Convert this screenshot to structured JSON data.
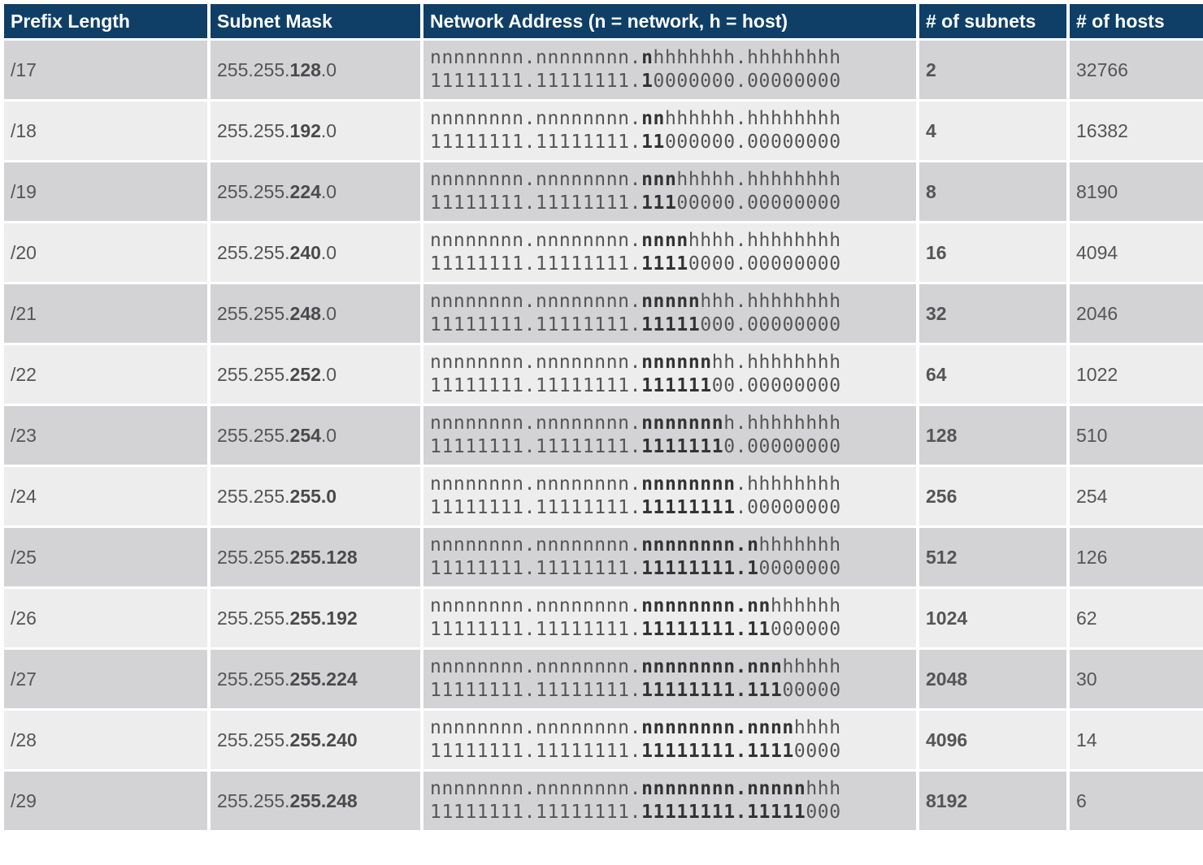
{
  "headers": [
    "Prefix Length",
    "Subnet Mask",
    "Network Address (n = network, h = host)",
    "# of subnets",
    "# of hosts"
  ],
  "rows": [
    {
      "prefix": "/17",
      "mask_plain": "255.255.",
      "mask_bold": "128",
      "mask_tail": ".0",
      "net_plain": "nnnnnnnn.nnnnnnnn.",
      "net_bold": "n",
      "net_tail": "hhhhhhh.hhhhhhhh",
      "bin_plain": "11111111.11111111.",
      "bin_bold": "1",
      "bin_tail": "0000000.00000000",
      "subnets": "2",
      "hosts": "32766"
    },
    {
      "prefix": "/18",
      "mask_plain": "255.255.",
      "mask_bold": "192",
      "mask_tail": ".0",
      "net_plain": "nnnnnnnn.nnnnnnnn.",
      "net_bold": "nn",
      "net_tail": "hhhhhh.hhhhhhhh",
      "bin_plain": "11111111.11111111.",
      "bin_bold": "11",
      "bin_tail": "000000.00000000",
      "subnets": "4",
      "hosts": "16382"
    },
    {
      "prefix": "/19",
      "mask_plain": "255.255.",
      "mask_bold": "224",
      "mask_tail": ".0",
      "net_plain": "nnnnnnnn.nnnnnnnn.",
      "net_bold": "nnn",
      "net_tail": "hhhhh.hhhhhhhh",
      "bin_plain": "11111111.11111111.",
      "bin_bold": "111",
      "bin_tail": "00000.00000000",
      "subnets": "8",
      "hosts": "8190"
    },
    {
      "prefix": "/20",
      "mask_plain": "255.255.",
      "mask_bold": "240",
      "mask_tail": ".0",
      "net_plain": "nnnnnnnn.nnnnnnnn.",
      "net_bold": "nnnn",
      "net_tail": "hhhh.hhhhhhhh",
      "bin_plain": "11111111.11111111.",
      "bin_bold": "1111",
      "bin_tail": "0000.00000000",
      "subnets": "16",
      "hosts": "4094"
    },
    {
      "prefix": "/21",
      "mask_plain": "255.255.",
      "mask_bold": "248",
      "mask_tail": ".0",
      "net_plain": "nnnnnnnn.nnnnnnnn.",
      "net_bold": "nnnnn",
      "net_tail": "hhh.hhhhhhhh",
      "bin_plain": "11111111.11111111.",
      "bin_bold": "11111",
      "bin_tail": "000.00000000",
      "subnets": "32",
      "hosts": "2046"
    },
    {
      "prefix": "/22",
      "mask_plain": "255.255.",
      "mask_bold": "252",
      "mask_tail": ".0",
      "net_plain": "nnnnnnnn.nnnnnnnn.",
      "net_bold": "nnnnnn",
      "net_tail": "hh.hhhhhhhh",
      "bin_plain": "11111111.11111111.",
      "bin_bold": "111111",
      "bin_tail": "00.00000000",
      "subnets": "64",
      "hosts": "1022"
    },
    {
      "prefix": "/23",
      "mask_plain": "255.255.",
      "mask_bold": "254",
      "mask_tail": ".0",
      "net_plain": "nnnnnnnn.nnnnnnnn.",
      "net_bold": "nnnnnnn",
      "net_tail": "h.hhhhhhhh",
      "bin_plain": "11111111.11111111.",
      "bin_bold": "1111111",
      "bin_tail": "0.00000000",
      "subnets": "128",
      "hosts": "510"
    },
    {
      "prefix": "/24",
      "mask_plain": "255.255.",
      "mask_bold": "255.0",
      "mask_tail": "",
      "net_plain": "nnnnnnnn.nnnnnnnn.",
      "net_bold": "nnnnnnnn",
      "net_tail": ".hhhhhhhh",
      "bin_plain": "11111111.11111111.",
      "bin_bold": "11111111",
      "bin_tail": ".00000000",
      "subnets": "256",
      "hosts": "254"
    },
    {
      "prefix": "/25",
      "mask_plain": "255.255.",
      "mask_bold": "255.128",
      "mask_tail": "",
      "net_plain": "nnnnnnnn.nnnnnnnn.",
      "net_bold": "nnnnnnnn.n",
      "net_tail": "hhhhhhh",
      "bin_plain": "11111111.11111111.",
      "bin_bold": "11111111.1",
      "bin_tail": "0000000",
      "subnets": "512",
      "hosts": "126"
    },
    {
      "prefix": "/26",
      "mask_plain": "255.255.",
      "mask_bold": "255.192",
      "mask_tail": "",
      "net_plain": "nnnnnnnn.nnnnnnnn.",
      "net_bold": "nnnnnnnn.nn",
      "net_tail": "hhhhhh",
      "bin_plain": "11111111.11111111.",
      "bin_bold": "11111111.11",
      "bin_tail": "000000",
      "subnets": "1024",
      "hosts": "62"
    },
    {
      "prefix": "/27",
      "mask_plain": "255.255.",
      "mask_bold": "255.224",
      "mask_tail": "",
      "net_plain": "nnnnnnnn.nnnnnnnn.",
      "net_bold": "nnnnnnnn.nnn",
      "net_tail": "hhhhh",
      "bin_plain": "11111111.11111111.",
      "bin_bold": "11111111.111",
      "bin_tail": "00000",
      "subnets": "2048",
      "hosts": "30"
    },
    {
      "prefix": "/28",
      "mask_plain": "255.255.",
      "mask_bold": "255.240",
      "mask_tail": "",
      "net_plain": "nnnnnnnn.nnnnnnnn.",
      "net_bold": "nnnnnnnn.nnnn",
      "net_tail": "hhhh",
      "bin_plain": "11111111.11111111.",
      "bin_bold": "11111111.1111",
      "bin_tail": "0000",
      "subnets": "4096",
      "hosts": "14"
    },
    {
      "prefix": "/29",
      "mask_plain": "255.255.",
      "mask_bold": "255.248",
      "mask_tail": "",
      "net_plain": "nnnnnnnn.nnnnnnnn.",
      "net_bold": "nnnnnnnn.nnnnn",
      "net_tail": "hhh",
      "bin_plain": "11111111.11111111.",
      "bin_bold": "11111111.11111",
      "bin_tail": "000",
      "subnets": "8192",
      "hosts": "6"
    }
  ],
  "colors": {
    "header_bg": "#0f3f66",
    "row_dark": "#d3d3d5",
    "row_light": "#ededee"
  }
}
